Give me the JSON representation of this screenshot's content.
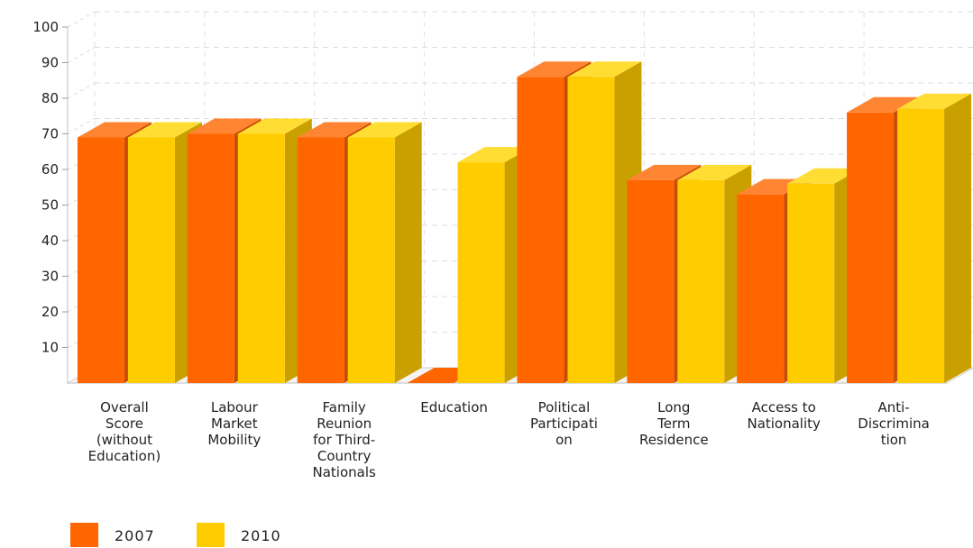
{
  "chart_data": {
    "type": "bar",
    "style": "3d-clustered-column",
    "categories": [
      [
        "Overall",
        "Score",
        "(without",
        "Education)"
      ],
      [
        "Labour",
        "Market",
        "Mobility"
      ],
      [
        "Family",
        "Reunion",
        "for Third-",
        "Country",
        "Nationals"
      ],
      [
        "Education"
      ],
      [
        "Political",
        "Participati",
        "on"
      ],
      [
        "Long",
        "Term",
        "Residence"
      ],
      [
        "Access to",
        "Nationality"
      ],
      [
        "Anti-",
        "Discrimina",
        "tion"
      ]
    ],
    "series": [
      {
        "name": "2007",
        "values": [
          69,
          70,
          69,
          0,
          86,
          57,
          53,
          76
        ],
        "color": "#ff6600",
        "side_color": "#c94d00",
        "top_color": "#ff8533"
      },
      {
        "name": "2010",
        "values": [
          69,
          70,
          69,
          62,
          86,
          57,
          56,
          77
        ],
        "color": "#ffcc00",
        "side_color": "#c9a000",
        "top_color": "#ffdd33"
      }
    ],
    "yticks": [
      10,
      20,
      30,
      40,
      50,
      60,
      70,
      80,
      90,
      100
    ],
    "ylim": [
      0,
      100
    ],
    "grid": true,
    "legend_position": "bottom-left",
    "title": "",
    "xlabel": "",
    "ylabel": ""
  }
}
